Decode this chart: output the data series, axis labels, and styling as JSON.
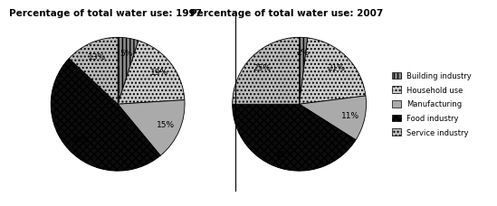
{
  "title1": "Percentage of total water use: 1997",
  "title2": "Percentage of total water use: 2007",
  "labels": [
    "Building industry",
    "Household use",
    "Manufacturing",
    "Food industry",
    "Service industry"
  ],
  "values1": [
    5,
    19,
    15,
    48,
    13
  ],
  "values2": [
    2,
    21,
    11,
    41,
    25
  ],
  "facecolors": [
    "#888888",
    "#c8c8c8",
    "#b0b0b0",
    "#111111",
    "#d8d8d8"
  ],
  "hatch_patterns": [
    "||||",
    "....",
    "~~~~",
    "xxxx",
    "...."
  ],
  "title_fontsize": 7.5,
  "pct_fontsize": 6.5,
  "legend_fontsize": 6
}
